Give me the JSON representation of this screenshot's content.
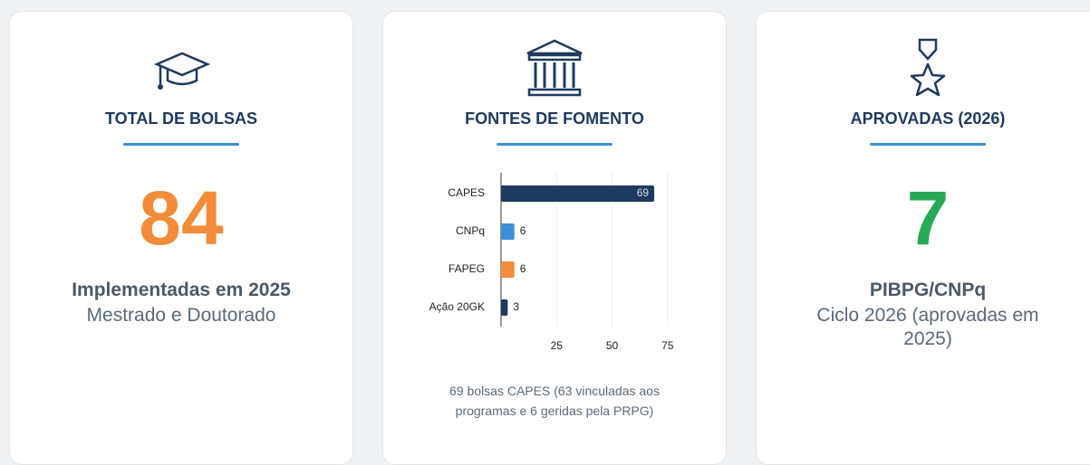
{
  "cards": [
    {
      "title": "TOTAL DE BOLSAS",
      "value": 84,
      "line1": "Implementadas em 2025",
      "line2": "Mestrado e Doutorado"
    },
    {
      "title": "FONTES DE FOMENTO",
      "note": "69 bolsas CAPES (63 vinculadas aos programas e 6 geridas pela PRPG)"
    },
    {
      "title": "APROVADAS (2026)",
      "value": 7,
      "line1": "PIBPG/CNPq",
      "line2": "Ciclo 2026 (aprovadas em 2025)"
    }
  ],
  "chart_data": {
    "type": "bar",
    "orientation": "horizontal",
    "categories": [
      "CAPES",
      "CNPq",
      "FAPEG",
      "Ação 20GK"
    ],
    "values": [
      69,
      6,
      6,
      3
    ],
    "colors": [
      "#1e3a5f",
      "#3b8fd6",
      "#f28c38",
      "#1e3a5f"
    ],
    "xlim": [
      0,
      80
    ],
    "xticks": [
      25,
      50,
      75
    ],
    "grid": true
  }
}
